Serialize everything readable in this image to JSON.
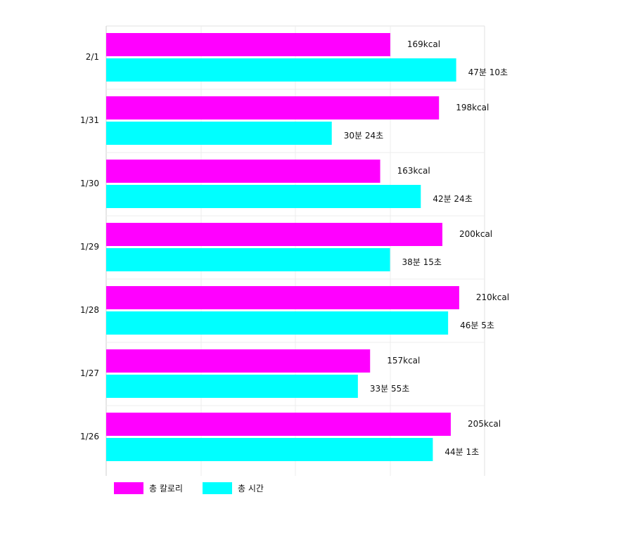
{
  "chart_data": {
    "type": "bar",
    "orientation": "horizontal",
    "categories": [
      "2/1",
      "1/31",
      "1/30",
      "1/29",
      "1/28",
      "1/27",
      "1/26"
    ],
    "series": [
      {
        "name": "총 칼로리",
        "color": "#ff00ff",
        "values": [
          169,
          198,
          163,
          200,
          210,
          157,
          205
        ],
        "labels": [
          "169kcal",
          "198kcal",
          "163kcal",
          "200kcal",
          "210kcal",
          "157kcal",
          "205kcal"
        ]
      },
      {
        "name": "총 시간",
        "color": "#00ffff",
        "values": [
          47.17,
          30.4,
          42.4,
          38.25,
          46.08,
          33.92,
          44.02
        ],
        "labels": [
          "47분 10초",
          "30분 24초",
          "42분 24초",
          "38분 15초",
          "46분 5초",
          "33분 55초",
          "44분 1초"
        ]
      }
    ],
    "grid": true,
    "legend_position": "bottom-left"
  }
}
